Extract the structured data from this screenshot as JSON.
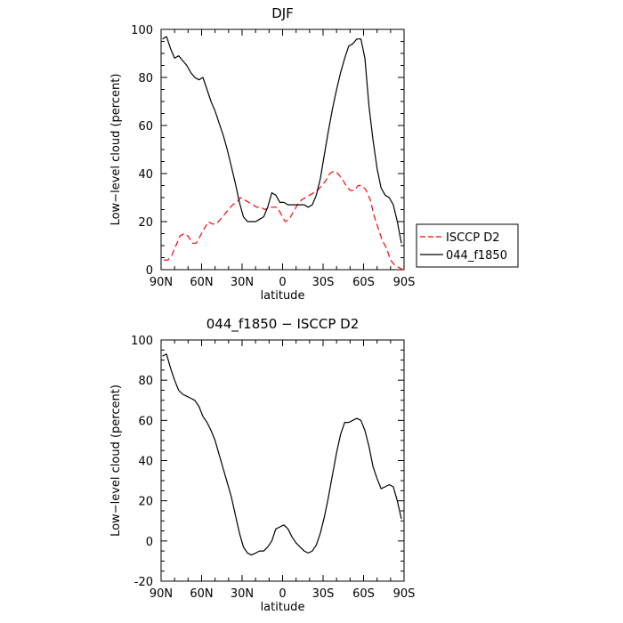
{
  "chart_data": [
    {
      "type": "line",
      "title": "DJF",
      "xlabel": "latitude",
      "ylabel": "Low−level cloud (percent)",
      "x_ticks": [
        -90,
        -60,
        -30,
        0,
        30,
        60,
        90
      ],
      "x_tick_labels": [
        "90N",
        "60N",
        "30N",
        "0",
        "30S",
        "60S",
        "90S"
      ],
      "ylim": [
        0,
        100
      ],
      "y_ticks": [
        0,
        20,
        40,
        60,
        80,
        100
      ],
      "legend": "right, outside plot",
      "series": [
        {
          "name": "ISCCP D2",
          "color": "#ff0000",
          "dash": "dashed",
          "x": [
            -88,
            -85,
            -82,
            -79,
            -76,
            -73,
            -70,
            -67,
            -64,
            -61,
            -58,
            -55,
            -52,
            -49,
            -46,
            -43,
            -40,
            -37,
            -34,
            -31,
            -28,
            -25,
            -22,
            -19,
            -16,
            -13,
            -10,
            -7,
            -4,
            -1,
            2,
            5,
            8,
            11,
            14,
            17,
            20,
            23,
            26,
            29,
            32,
            35,
            38,
            41,
            44,
            47,
            50,
            53,
            56,
            59,
            62,
            65,
            68,
            71,
            74,
            77,
            80,
            83,
            86,
            89
          ],
          "y": [
            4,
            4,
            6,
            10,
            14,
            15,
            14,
            11,
            11,
            14,
            17,
            20,
            19,
            19,
            21,
            23,
            25,
            27,
            28,
            30,
            29,
            28,
            27,
            26,
            26,
            25,
            26,
            26,
            26,
            23,
            20,
            21,
            24,
            27,
            29,
            30,
            31,
            32,
            33,
            35,
            37,
            40,
            41,
            40,
            38,
            35,
            33,
            33,
            35,
            35,
            33,
            29,
            22,
            17,
            12,
            9,
            4,
            2,
            1,
            0
          ]
        },
        {
          "name": "044_f1850",
          "color": "#000000",
          "dash": "solid",
          "x": [
            -89,
            -86,
            -83,
            -80,
            -77,
            -74,
            -71,
            -68,
            -65,
            -62,
            -59,
            -56,
            -53,
            -50,
            -47,
            -44,
            -41,
            -38,
            -35,
            -32,
            -29,
            -26,
            -23,
            -20,
            -17,
            -14,
            -11,
            -8,
            -5,
            -2,
            1,
            4,
            7,
            10,
            13,
            16,
            19,
            22,
            25,
            28,
            31,
            34,
            37,
            40,
            43,
            46,
            49,
            52,
            55,
            58,
            61,
            64,
            67,
            70,
            73,
            76,
            79,
            82,
            85,
            88
          ],
          "y": [
            96,
            97,
            92,
            88,
            89,
            87,
            85,
            82,
            80,
            79,
            80,
            75,
            70,
            66,
            61,
            56,
            50,
            43,
            36,
            28,
            22,
            20,
            20,
            20,
            21,
            22,
            26,
            32,
            31,
            28,
            28,
            27,
            27,
            27,
            27,
            27,
            26,
            27,
            31,
            38,
            48,
            58,
            67,
            75,
            82,
            88,
            93,
            94,
            96,
            96,
            88,
            68,
            54,
            42,
            34,
            31,
            30,
            27,
            20,
            11
          ]
        }
      ]
    },
    {
      "type": "line",
      "title": "044_f1850 − ISCCP D2",
      "xlabel": "latitude",
      "ylabel": "Low−level cloud (percent)",
      "x_ticks": [
        -90,
        -60,
        -30,
        0,
        30,
        60,
        90
      ],
      "x_tick_labels": [
        "90N",
        "60N",
        "30N",
        "0",
        "30S",
        "60S",
        "90S"
      ],
      "ylim": [
        -20,
        100
      ],
      "y_ticks": [
        -20,
        0,
        20,
        40,
        60,
        80,
        100
      ],
      "series": [
        {
          "color": "#000000",
          "dash": "solid",
          "x": [
            -89,
            -86,
            -83,
            -80,
            -77,
            -74,
            -71,
            -68,
            -65,
            -62,
            -59,
            -56,
            -53,
            -50,
            -47,
            -44,
            -41,
            -38,
            -35,
            -32,
            -29,
            -26,
            -23,
            -20,
            -17,
            -14,
            -11,
            -8,
            -5,
            -2,
            1,
            4,
            7,
            10,
            13,
            16,
            19,
            22,
            25,
            28,
            31,
            34,
            37,
            40,
            43,
            46,
            49,
            52,
            55,
            58,
            61,
            64,
            67,
            70,
            73,
            76,
            79,
            82,
            85,
            88
          ],
          "y": [
            92,
            93,
            86,
            80,
            75,
            73,
            72,
            71,
            70,
            67,
            62,
            59,
            55,
            50,
            43,
            36,
            29,
            22,
            13,
            4,
            -3,
            -6,
            -7,
            -6,
            -5,
            -5,
            -3,
            0,
            6,
            7,
            8,
            6,
            2,
            -1,
            -3,
            -5,
            -6,
            -5,
            -2,
            4,
            12,
            22,
            33,
            44,
            53,
            59,
            59,
            60,
            61,
            60,
            55,
            47,
            37,
            31,
            26,
            27,
            28,
            27,
            20,
            11
          ]
        }
      ]
    }
  ]
}
